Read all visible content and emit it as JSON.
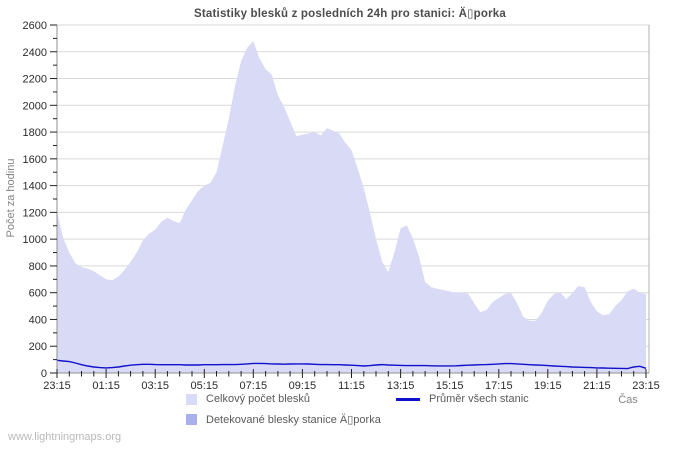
{
  "title": "Statistiky blesků z posledních 24h pro stanici: Ä▯porka",
  "station": "Ä▯porka",
  "watermark": "www.lightningmaps.org",
  "axes": {
    "y_label": "Počet za hodinu",
    "x_label": "Čas"
  },
  "legend": [
    {
      "label": "Celkový počet blesků",
      "swatch": "area",
      "color": "#d8daf6"
    },
    {
      "label": "Průměr všech stanic",
      "swatch": "line",
      "color": "#1111cc"
    },
    {
      "label": "Detekované blesky stanice Ä▯porka",
      "swatch": "area",
      "color": "#a9aeee"
    }
  ],
  "chart_data": {
    "type": "area",
    "title": "Statistiky blesků z posledních 24h pro stanici: Ä▯porka",
    "xlabel": "Čas",
    "ylabel": "Počet za hodinu",
    "x_start": "23:15",
    "x_sampling_hours": 0.25,
    "x_span_hours": 24,
    "x_ticks": [
      "23:15",
      "01:15",
      "03:15",
      "05:15",
      "07:15",
      "09:15",
      "11:15",
      "13:15",
      "15:15",
      "17:15",
      "19:15",
      "21:15",
      "23:15"
    ],
    "x_tick_step_hours": 2,
    "x_minor_tick_hours": 0.5,
    "ylim": [
      0,
      2600
    ],
    "y_major_step": 200,
    "y_minor_step": 100,
    "y_tick_labels": [
      "0",
      "200",
      "400",
      "600",
      "800",
      "1000",
      "1200",
      "1400",
      "1600",
      "1800",
      "2000",
      "2200",
      "2400",
      "2600"
    ],
    "grid": "horizontal",
    "legend_position": "bottom",
    "colors": {
      "grid": "#d9d9d9",
      "axis": "#8f8f8f",
      "tick": "#222222",
      "border_right": "#b0b0b0",
      "tick_label": "#2b2b2b"
    },
    "series": [
      {
        "name": "Celkový počet blesků",
        "type": "area",
        "color": "#d8daf6",
        "values": [
          1205,
          1010,
          900,
          820,
          790,
          780,
          760,
          730,
          700,
          693,
          720,
          770,
          830,
          900,
          990,
          1040,
          1070,
          1130,
          1160,
          1135,
          1120,
          1220,
          1290,
          1360,
          1400,
          1420,
          1500,
          1700,
          1900,
          2140,
          2330,
          2430,
          2480,
          2350,
          2270,
          2230,
          2075,
          1990,
          1880,
          1770,
          1780,
          1790,
          1800,
          1775,
          1830,
          1810,
          1790,
          1720,
          1665,
          1530,
          1380,
          1200,
          1000,
          830,
          755,
          900,
          1080,
          1105,
          1005,
          870,
          680,
          640,
          630,
          620,
          610,
          600,
          600,
          595,
          520,
          455,
          470,
          530,
          560,
          590,
          600,
          520,
          420,
          390,
          390,
          450,
          540,
          590,
          605,
          550,
          600,
          650,
          640,
          530,
          460,
          430,
          440,
          500,
          545,
          610,
          630,
          600,
          590
        ]
      },
      {
        "name": "Průměr všech stanic",
        "type": "line",
        "color": "#1111cc",
        "values": [
          95,
          90,
          85,
          75,
          62,
          52,
          45,
          40,
          38,
          40,
          45,
          52,
          58,
          62,
          65,
          65,
          63,
          62,
          62,
          62,
          62,
          60,
          60,
          60,
          62,
          62,
          62,
          63,
          63,
          63,
          65,
          68,
          72,
          72,
          70,
          68,
          67,
          66,
          67,
          68,
          68,
          67,
          65,
          63,
          63,
          62,
          62,
          60,
          58,
          55,
          52,
          55,
          60,
          63,
          60,
          58,
          57,
          55,
          55,
          55,
          55,
          54,
          53,
          53,
          53,
          54,
          56,
          58,
          60,
          62,
          63,
          65,
          68,
          70,
          70,
          68,
          65,
          62,
          60,
          58,
          55,
          52,
          50,
          48,
          45,
          43,
          42,
          40,
          38,
          37,
          36,
          35,
          34,
          33,
          45,
          50,
          35
        ]
      },
      {
        "name": "Detekované blesky stanice Ä▯porka",
        "type": "area",
        "color": "#a9aeee",
        "all_zero": true
      }
    ]
  }
}
